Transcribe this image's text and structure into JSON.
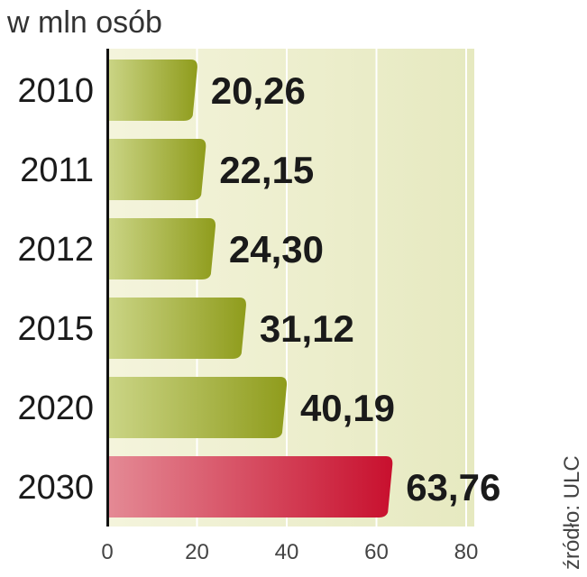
{
  "chart_data": {
    "type": "bar",
    "orientation": "horizontal",
    "unit_label": "w mln osób",
    "categories": [
      "2010",
      "2011",
      "2012",
      "2015",
      "2020",
      "2030"
    ],
    "values": [
      20.26,
      22.15,
      24.3,
      31.12,
      40.19,
      63.76
    ],
    "value_labels": [
      "20,26",
      "22,15",
      "24,30",
      "31,12",
      "40,19",
      "63,76"
    ],
    "xlim": [
      0,
      80
    ],
    "xticks": [
      "0",
      "20",
      "40",
      "60",
      "80"
    ],
    "grid": true,
    "highlight_category": "2030",
    "source": "źródło: ULC",
    "colors": {
      "bar_light": "#cbd586",
      "bar_dark": "#8f9c1c",
      "highlight_light": "#e48a95",
      "highlight_dark": "#c8102e",
      "highlight_text": "#c8102e",
      "plot_bg_light": "#f4f4dc",
      "plot_bg_dark": "#e6e9c0",
      "text": "#1a1a1a"
    }
  }
}
